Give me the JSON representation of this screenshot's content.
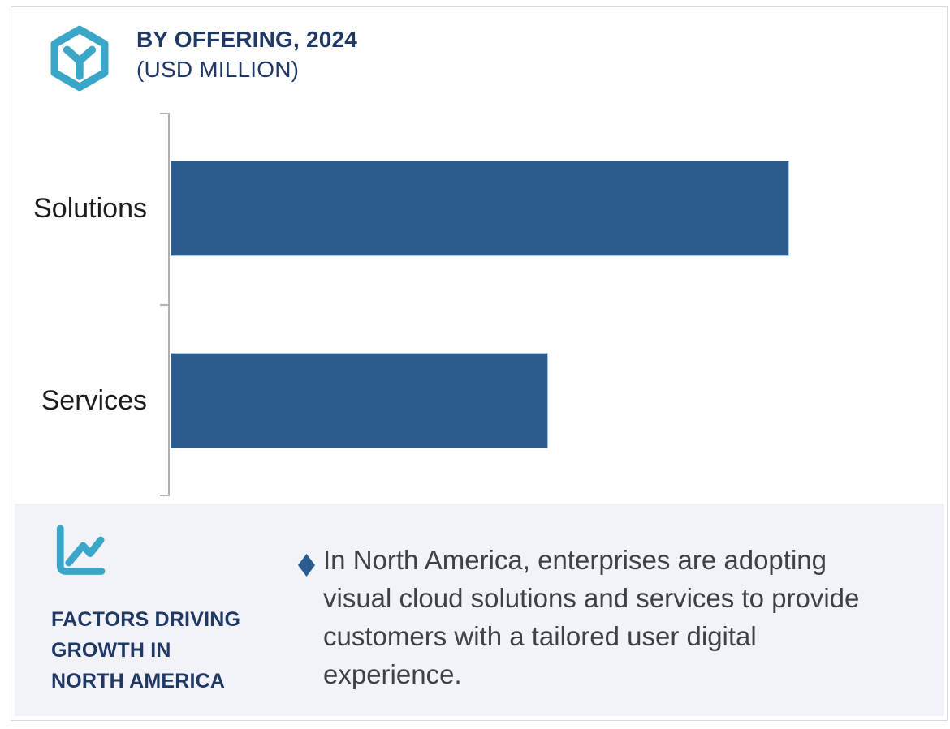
{
  "header": {
    "icon_name": "hexagon-cube-icon",
    "icon_color": "#3ba7c8",
    "title_line1": "BY OFFERING, 2024",
    "title_line2": "(USD MILLION)",
    "title_color": "#1f3864"
  },
  "chart_data": {
    "type": "bar",
    "orientation": "horizontal",
    "title": "BY OFFERING, 2024 (USD MILLION)",
    "categories": [
      "Solutions",
      "Services"
    ],
    "series": [
      {
        "name": "2024",
        "values_relative_percent": [
          100,
          61
        ]
      }
    ],
    "value_labels_shown": false,
    "numeric_axis_shown": false,
    "grid": false,
    "bar_color": "#2c5c8d",
    "axis_color": "#b0b0b0"
  },
  "factors_panel": {
    "background_color": "#f2f3f8",
    "icon_name": "line-chart-icon",
    "icon_color": "#3ba7c8",
    "heading_lines": [
      "FACTORS DRIVING",
      "GROWTH IN",
      "NORTH AMERICA"
    ],
    "heading_color": "#1f3864",
    "bullet_marker": "diamond",
    "bullet_marker_color": "#2b5c90",
    "bullet_text": "In North America, enterprises are adopting visual cloud solutions and services to provide customers with a tailored user digital experience."
  }
}
